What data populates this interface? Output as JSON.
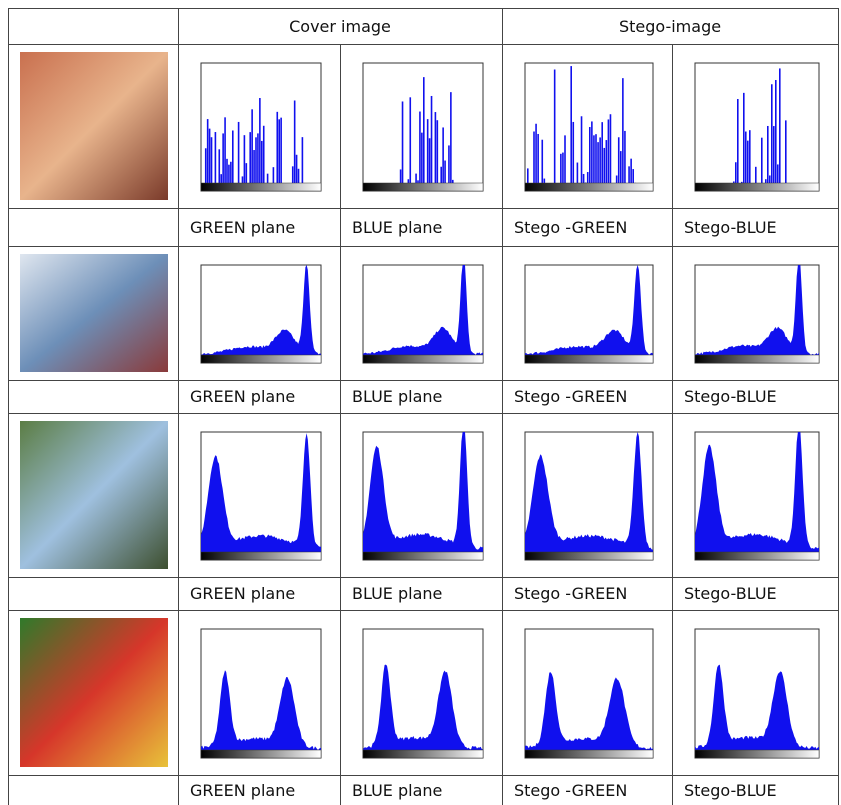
{
  "header": {
    "cover": "Cover image",
    "stego": "Stego-image"
  },
  "rows": [
    {
      "labels": [
        "GREEN plane",
        "BLUE plane",
        "Stego -GREEN",
        "Stego-BLUE"
      ]
    },
    {
      "labels": [
        "GREEN plane",
        "BLUE plane",
        "Stego -GREEN",
        "Stego-BLUE"
      ]
    },
    {
      "labels": [
        "GREEN plane",
        "BLUE plane",
        "Stego -GREEN",
        "Stego-BLUE"
      ]
    },
    {
      "labels": [
        "GREEN plane",
        "BLUE plane",
        "Stego -GREEN",
        "Stego-BLUE"
      ]
    }
  ]
}
